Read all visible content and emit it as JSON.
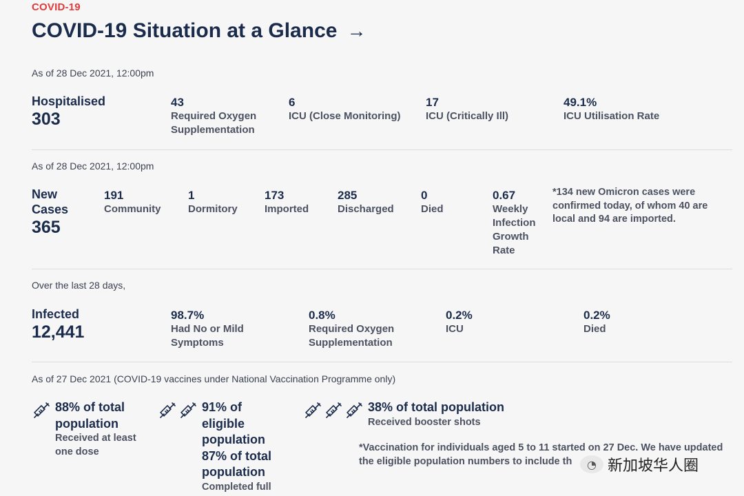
{
  "kicker": "COVID-19",
  "title": "COVID-19 Situation at a Glance",
  "title_arrow": "→",
  "hospital": {
    "asof": "As of 28 Dec 2021, 12:00pm",
    "label": "Hospitalised",
    "total": "303",
    "stats": [
      {
        "num": "43",
        "label": "Required Oxygen Supplementation"
      },
      {
        "num": "6",
        "label": "ICU (Close Monitoring)"
      },
      {
        "num": "17",
        "label": "ICU (Critically Ill)"
      },
      {
        "num": "49.1%",
        "label": "ICU Utilisation Rate"
      }
    ]
  },
  "cases": {
    "asof": "As of 28 Dec 2021, 12:00pm",
    "label_line1": "New",
    "label_line2": "Cases",
    "total": "365",
    "stats": [
      {
        "num": "191",
        "label": "Community"
      },
      {
        "num": "1",
        "label": "Dormitory"
      },
      {
        "num": "173",
        "label": "Imported"
      },
      {
        "num": "285",
        "label": "Discharged"
      },
      {
        "num": "0",
        "label": "Died"
      },
      {
        "num": "0.67",
        "label": "Weekly Infection Growth Rate"
      }
    ],
    "note": "*134 new Omicron cases were confirmed today, of whom 40 are local and 94 are imported."
  },
  "infected": {
    "asof": "Over the last 28 days,",
    "label": "Infected",
    "total": "12,441",
    "stats": [
      {
        "num": "98.7%",
        "label": "Had No or Mild Symptoms"
      },
      {
        "num": "0.8%",
        "label": "Required Oxygen Supplementation"
      },
      {
        "num": "0.2%",
        "label": "ICU"
      },
      {
        "num": "0.2%",
        "label": "Died"
      }
    ]
  },
  "vaccination": {
    "asof": "As of 27 Dec 2021 (COVID-19 vaccines under National Vaccination Programme only)",
    "items": [
      {
        "icons": [
          "syringe-icon"
        ],
        "big": "88% of total population",
        "sub": "Received at least one dose"
      },
      {
        "icons": [
          "syringe-icon",
          "syringe-icon"
        ],
        "big": "91% of eligible population 87% of total population",
        "sub": "Completed full"
      },
      {
        "icons": [
          "syringe-icon",
          "syringe-icon",
          "syringe-icon"
        ],
        "big": "38% of total population",
        "sub": "Received booster shots"
      }
    ],
    "note": "*Vaccination for individuals aged 5 to 11 started on 27 Dec. We have updated the eligible population numbers to include th"
  },
  "watermark": "新加坡华人圈",
  "colors": {
    "navy": "#1a2b4c",
    "red": "#e03a3a",
    "grey_text": "#4b5160",
    "background": "#f6f6f6"
  }
}
